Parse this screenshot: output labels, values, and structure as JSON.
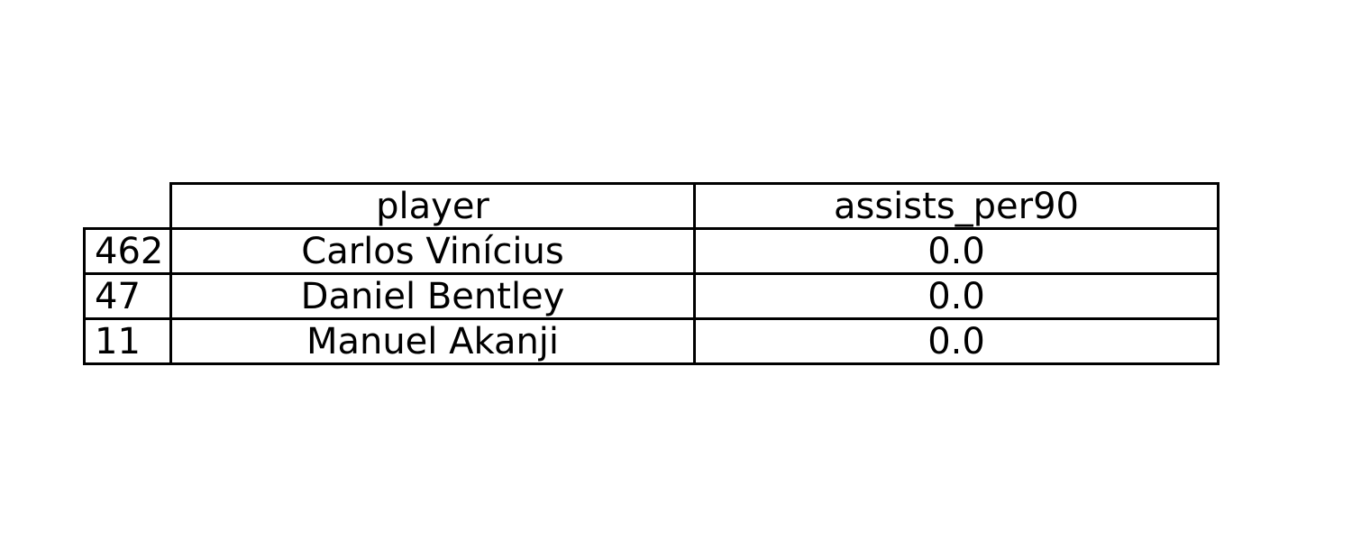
{
  "chart_data": {
    "type": "table",
    "columns": [
      "player",
      "assists_per90"
    ],
    "rows": [
      {
        "index": "462",
        "cells": [
          "Carlos Vinícius",
          "0.0"
        ]
      },
      {
        "index": "47",
        "cells": [
          "Daniel Bentley",
          "0.0"
        ]
      },
      {
        "index": "11",
        "cells": [
          "Manuel Akanji",
          "0.0"
        ]
      }
    ]
  }
}
